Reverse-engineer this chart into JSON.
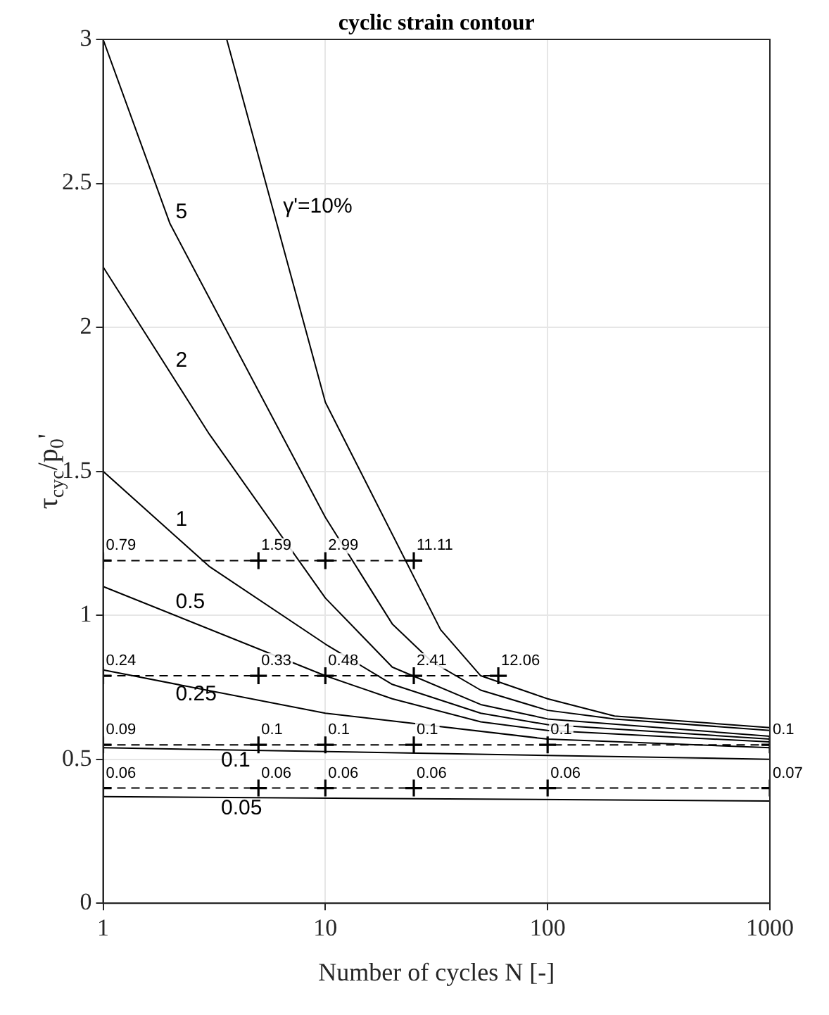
{
  "chart_data": {
    "type": "line",
    "title": "cyclic strain contour",
    "xlabel": "Number of cycles N [-]",
    "ylabel": "τ$_{cyc}$/p$_{0}$'",
    "log": "x",
    "xlim": [
      1,
      1000
    ],
    "xticks": [
      1,
      10,
      100,
      1000
    ],
    "ylim": [
      0,
      3
    ],
    "yticks": [
      0,
      0.5,
      1,
      1.5,
      2,
      2.5,
      3
    ],
    "grid": true,
    "legend": false,
    "series": [
      {
        "name": "γ'=10%",
        "color": "#000000",
        "marker": "none",
        "line_style": "solid",
        "x": [
          3.6,
          10,
          33,
          50,
          100,
          200,
          1000
        ],
        "values": [
          3,
          1.74,
          0.95,
          0.79,
          0.71,
          0.65,
          0.61
        ]
      },
      {
        "name": "5",
        "color": "#000000",
        "marker": "none",
        "line_style": "solid",
        "x": [
          1,
          2,
          10,
          20,
          30,
          50,
          100,
          200,
          1000
        ],
        "values": [
          3,
          2.36,
          1.34,
          0.97,
          0.84,
          0.74,
          0.67,
          0.64,
          0.6
        ]
      },
      {
        "name": "2",
        "color": "#000000",
        "marker": "none",
        "line_style": "solid",
        "x": [
          1,
          3,
          10,
          20,
          50,
          100,
          1000
        ],
        "values": [
          2.21,
          1.63,
          1.06,
          0.82,
          0.69,
          0.64,
          0.58
        ]
      },
      {
        "name": "1",
        "color": "#000000",
        "marker": "none",
        "line_style": "solid",
        "x": [
          1,
          3,
          10,
          20,
          50,
          100,
          1000
        ],
        "values": [
          1.5,
          1.17,
          0.9,
          0.76,
          0.66,
          0.62,
          0.57
        ]
      },
      {
        "name": "0.5",
        "color": "#000000",
        "marker": "none",
        "line_style": "solid",
        "x": [
          1,
          10,
          20,
          50,
          100,
          1000
        ],
        "values": [
          1.1,
          0.79,
          0.71,
          0.63,
          0.6,
          0.56
        ]
      },
      {
        "name": "0.25",
        "color": "#000000",
        "marker": "none",
        "line_style": "solid",
        "x": [
          1,
          10,
          100,
          1000
        ],
        "values": [
          0.81,
          0.66,
          0.57,
          0.54
        ]
      },
      {
        "name": "0.1",
        "color": "#000000",
        "marker": "none",
        "line_style": "solid",
        "x": [
          1,
          1000
        ],
        "values": [
          0.54,
          0.5
        ]
      },
      {
        "name": "0.05",
        "color": "#000000",
        "marker": "none",
        "line_style": "solid",
        "x": [
          1,
          1000
        ],
        "values": [
          0.37,
          0.355
        ]
      },
      {
        "color": "#000000",
        "marker": "cross",
        "line_style": "dashed",
        "x": [
          1,
          5,
          10,
          25
        ],
        "values": [
          1.19,
          1.19,
          1.19,
          1.19
        ]
      },
      {
        "color": "#000000",
        "marker": "cross",
        "line_style": "dashed",
        "x": [
          1,
          5,
          10,
          25,
          60
        ],
        "values": [
          0.79,
          0.79,
          0.79,
          0.79,
          0.79
        ]
      },
      {
        "color": "#000000",
        "marker": "cross",
        "line_style": "dashed",
        "x": [
          1,
          5,
          10,
          25,
          100,
          1000
        ],
        "values": [
          0.55,
          0.55,
          0.55,
          0.55,
          0.55,
          0.55
        ]
      },
      {
        "color": "#000000",
        "marker": "cross",
        "line_style": "dashed",
        "x": [
          1,
          5,
          10,
          25,
          100,
          1000
        ],
        "values": [
          0.4,
          0.4,
          0.4,
          0.4,
          0.4,
          0.4
        ]
      }
    ],
    "annotations": [
      {
        "text": "0.79",
        "x": 1,
        "y": 1.19
      },
      {
        "text": "1.59",
        "x": 5,
        "y": 1.19
      },
      {
        "text": "2.99",
        "x": 10,
        "y": 1.19
      },
      {
        "text": "11.11",
        "x": 25,
        "y": 1.19
      },
      {
        "text": "0.24",
        "x": 1,
        "y": 0.79
      },
      {
        "text": "0.33",
        "x": 5,
        "y": 0.79
      },
      {
        "text": "0.48",
        "x": 10,
        "y": 0.79
      },
      {
        "text": "2.41",
        "x": 25,
        "y": 0.79
      },
      {
        "text": "12.06",
        "x": 60,
        "y": 0.79
      },
      {
        "text": "0.09",
        "x": 1,
        "y": 0.55
      },
      {
        "text": "0.1",
        "x": 5,
        "y": 0.55
      },
      {
        "text": "0.1",
        "x": 10,
        "y": 0.55
      },
      {
        "text": "0.1",
        "x": 25,
        "y": 0.55
      },
      {
        "text": "0.1",
        "x": 100,
        "y": 0.55
      },
      {
        "text": "0.1",
        "x": 1000,
        "y": 0.55
      },
      {
        "text": "0.06",
        "x": 1,
        "y": 0.4
      },
      {
        "text": "0.06",
        "x": 5,
        "y": 0.4
      },
      {
        "text": "0.06",
        "x": 10,
        "y": 0.4
      },
      {
        "text": "0.06",
        "x": 25,
        "y": 0.4
      },
      {
        "text": "0.06",
        "x": 100,
        "y": 0.4
      },
      {
        "text": "0.07",
        "x": 1000,
        "y": 0.4
      }
    ]
  }
}
